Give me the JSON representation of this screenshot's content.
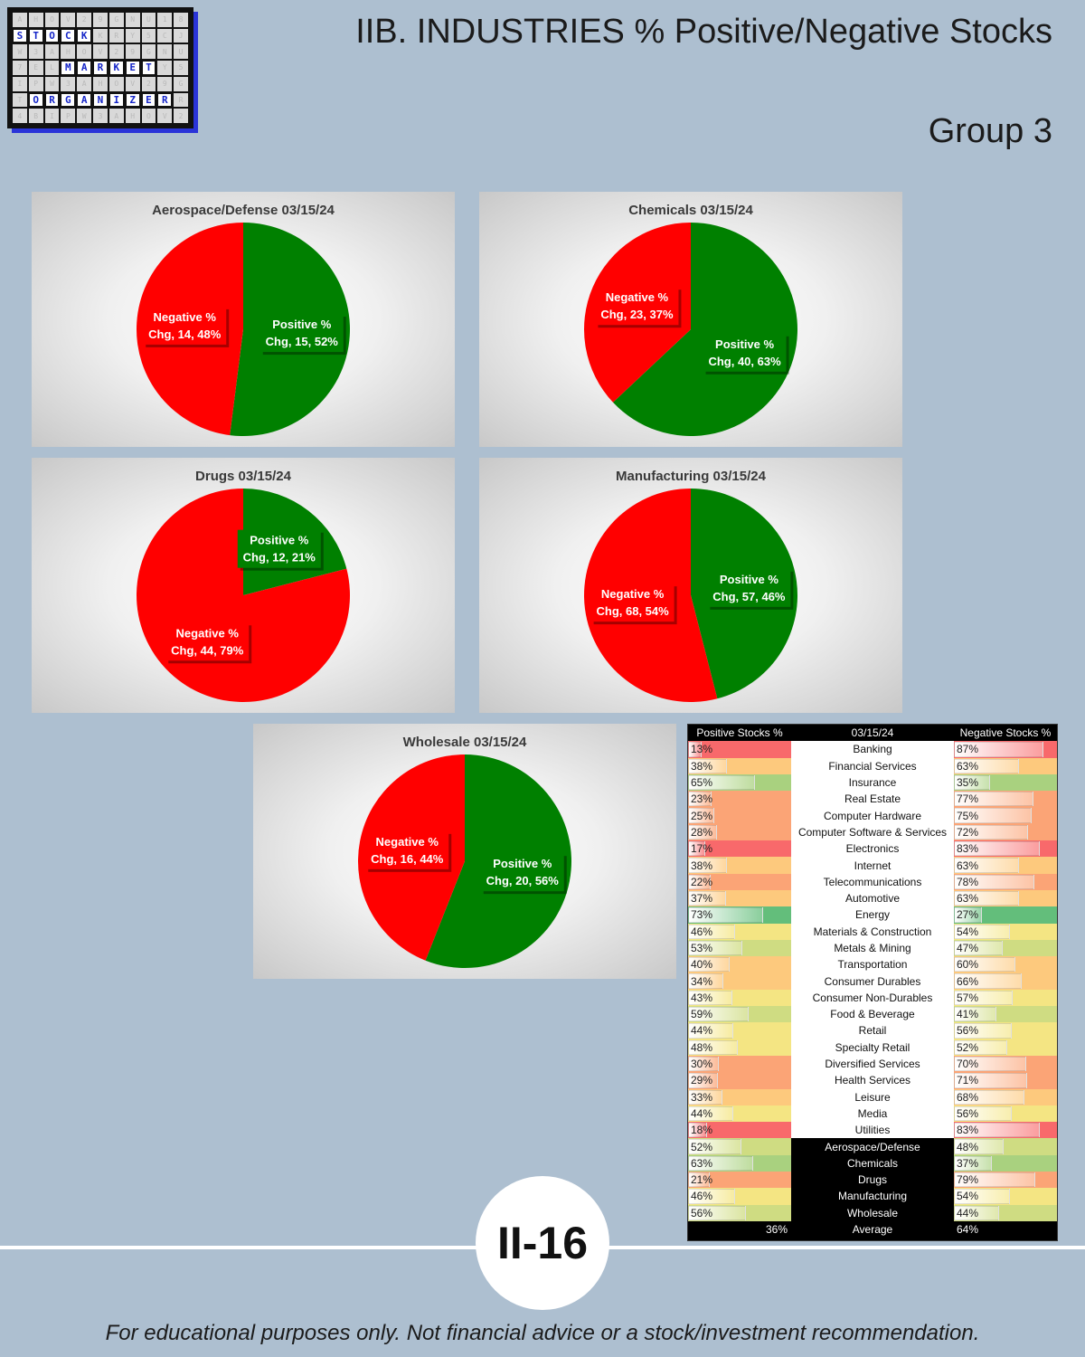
{
  "title": "IIB. INDUSTRIES % Positive/Negative Stocks",
  "subtitle": "Group 3",
  "page_number": "II-16",
  "footer": "For educational purposes only. Not financial advice or a stock/investment recommendation.",
  "logo": {
    "words": [
      "STOCK",
      "MARKET",
      "ORGANIZER"
    ]
  },
  "colors": {
    "positive": "#008000",
    "negative": "#ff0000",
    "background": "#adbfd0"
  },
  "chart_data": [
    {
      "type": "pie",
      "title": "Aerospace/Defense 03/15/24",
      "slices": [
        {
          "label": "Positive % Chg",
          "count": 15,
          "pct": 52,
          "line1": "Positive %",
          "line2": "Chg, 15, 52%"
        },
        {
          "label": "Negative % Chg",
          "count": 14,
          "pct": 48,
          "line1": "Negative %",
          "line2": "Chg, 14, 48%"
        }
      ]
    },
    {
      "type": "pie",
      "title": "Chemicals 03/15/24",
      "slices": [
        {
          "label": "Positive % Chg",
          "count": 40,
          "pct": 63,
          "line1": "Positive %",
          "line2": "Chg, 40, 63%"
        },
        {
          "label": "Negative % Chg",
          "count": 23,
          "pct": 37,
          "line1": "Negative %",
          "line2": "Chg, 23, 37%"
        }
      ]
    },
    {
      "type": "pie",
      "title": "Drugs 03/15/24",
      "slices": [
        {
          "label": "Positive % Chg",
          "count": 12,
          "pct": 21,
          "line1": "Positive %",
          "line2": "Chg, 12, 21%"
        },
        {
          "label": "Negative % Chg",
          "count": 44,
          "pct": 79,
          "line1": "Negative %",
          "line2": "Chg, 44, 79%"
        }
      ]
    },
    {
      "type": "pie",
      "title": "Manufacturing 03/15/24",
      "slices": [
        {
          "label": "Positive % Chg",
          "count": 57,
          "pct": 46,
          "line1": "Positive %",
          "line2": "Chg, 57, 46%"
        },
        {
          "label": "Negative % Chg",
          "count": 68,
          "pct": 54,
          "line1": "Negative %",
          "line2": "Chg, 68, 54%"
        }
      ]
    },
    {
      "type": "pie",
      "title": "Wholesale 03/15/24",
      "slices": [
        {
          "label": "Positive % Chg",
          "count": 20,
          "pct": 56,
          "line1": "Positive %",
          "line2": "Chg, 20, 56%"
        },
        {
          "label": "Negative % Chg",
          "count": 16,
          "pct": 44,
          "line1": "Negative %",
          "line2": "Chg, 16, 44%"
        }
      ]
    },
    {
      "type": "table",
      "headers": {
        "left": "Positive Stocks %",
        "middle": "03/15/24",
        "right": "Negative Stocks %"
      },
      "rows": [
        {
          "name": "Banking",
          "pos": 13,
          "neg": 87,
          "pos_label": "13%",
          "neg_label": "87%",
          "group": false
        },
        {
          "name": "Financial Services",
          "pos": 38,
          "neg": 63,
          "pos_label": "38%",
          "neg_label": "63%",
          "group": false
        },
        {
          "name": "Insurance",
          "pos": 65,
          "neg": 35,
          "pos_label": "65%",
          "neg_label": "35%",
          "group": false
        },
        {
          "name": "Real Estate",
          "pos": 23,
          "neg": 77,
          "pos_label": "23%",
          "neg_label": "77%",
          "group": false
        },
        {
          "name": "Computer Hardware",
          "pos": 25,
          "neg": 75,
          "pos_label": "25%",
          "neg_label": "75%",
          "group": false
        },
        {
          "name": "Computer Software & Services",
          "pos": 28,
          "neg": 72,
          "pos_label": "28%",
          "neg_label": "72%",
          "group": false
        },
        {
          "name": "Electronics",
          "pos": 17,
          "neg": 83,
          "pos_label": "17%",
          "neg_label": "83%",
          "group": false
        },
        {
          "name": "Internet",
          "pos": 38,
          "neg": 63,
          "pos_label": "38%",
          "neg_label": "63%",
          "group": false
        },
        {
          "name": "Telecommunications",
          "pos": 22,
          "neg": 78,
          "pos_label": "22%",
          "neg_label": "78%",
          "group": false
        },
        {
          "name": "Automotive",
          "pos": 37,
          "neg": 63,
          "pos_label": "37%",
          "neg_label": "63%",
          "group": false
        },
        {
          "name": "Energy",
          "pos": 73,
          "neg": 27,
          "pos_label": "73%",
          "neg_label": "27%",
          "group": false
        },
        {
          "name": "Materials & Construction",
          "pos": 46,
          "neg": 54,
          "pos_label": "46%",
          "neg_label": "54%",
          "group": false
        },
        {
          "name": "Metals & Mining",
          "pos": 53,
          "neg": 47,
          "pos_label": "53%",
          "neg_label": "47%",
          "group": false
        },
        {
          "name": "Transportation",
          "pos": 40,
          "neg": 60,
          "pos_label": "40%",
          "neg_label": "60%",
          "group": false
        },
        {
          "name": "Consumer Durables",
          "pos": 34,
          "neg": 66,
          "pos_label": "34%",
          "neg_label": "66%",
          "group": false
        },
        {
          "name": "Consumer Non-Durables",
          "pos": 43,
          "neg": 57,
          "pos_label": "43%",
          "neg_label": "57%",
          "group": false
        },
        {
          "name": "Food & Beverage",
          "pos": 59,
          "neg": 41,
          "pos_label": "59%",
          "neg_label": "41%",
          "group": false
        },
        {
          "name": "Retail",
          "pos": 44,
          "neg": 56,
          "pos_label": "44%",
          "neg_label": "56%",
          "group": false
        },
        {
          "name": "Specialty Retail",
          "pos": 48,
          "neg": 52,
          "pos_label": "48%",
          "neg_label": "52%",
          "group": false
        },
        {
          "name": "Diversified Services",
          "pos": 30,
          "neg": 70,
          "pos_label": "30%",
          "neg_label": "70%",
          "group": false
        },
        {
          "name": "Health Services",
          "pos": 29,
          "neg": 71,
          "pos_label": "29%",
          "neg_label": "71%",
          "group": false
        },
        {
          "name": "Leisure",
          "pos": 33,
          "neg": 68,
          "pos_label": "33%",
          "neg_label": "68%",
          "group": false
        },
        {
          "name": "Media",
          "pos": 44,
          "neg": 56,
          "pos_label": "44%",
          "neg_label": "56%",
          "group": false
        },
        {
          "name": "Utilities",
          "pos": 18,
          "neg": 83,
          "pos_label": "18%",
          "neg_label": "83%",
          "group": false
        },
        {
          "name": "Aerospace/Defense",
          "pos": 52,
          "neg": 48,
          "pos_label": "52%",
          "neg_label": "48%",
          "group": true
        },
        {
          "name": "Chemicals",
          "pos": 63,
          "neg": 37,
          "pos_label": "63%",
          "neg_label": "37%",
          "group": true
        },
        {
          "name": "Drugs",
          "pos": 21,
          "neg": 79,
          "pos_label": "21%",
          "neg_label": "79%",
          "group": true
        },
        {
          "name": "Manufacturing",
          "pos": 46,
          "neg": 54,
          "pos_label": "46%",
          "neg_label": "54%",
          "group": true
        },
        {
          "name": "Wholesale",
          "pos": 56,
          "neg": 44,
          "pos_label": "56%",
          "neg_label": "44%",
          "group": true
        }
      ],
      "average": {
        "label": "Average",
        "pos_label": "36%",
        "neg_label": "64%"
      }
    }
  ]
}
